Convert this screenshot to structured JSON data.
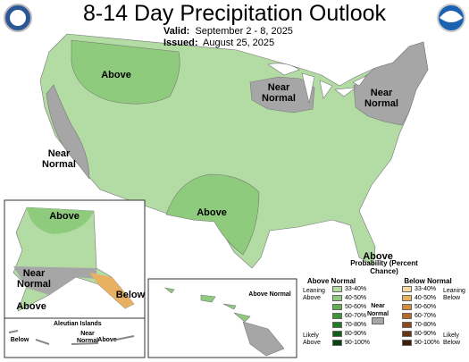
{
  "header": {
    "title": "8-14 Day Precipitation Outlook",
    "valid_label": "Valid:",
    "valid": "September 2 - 8, 2025",
    "issued_label": "Issued:",
    "issued": "August 25, 2025"
  },
  "map": {
    "labels": [
      "Above",
      "Near Normal",
      "Near Normal",
      "Near Normal",
      "Above",
      "Above",
      "Above",
      "Near Normal",
      "Above",
      "Below",
      "Above Normal",
      "Below",
      "Near Normal",
      "Above"
    ],
    "inset_title": "Aleutian Islands"
  },
  "legend": {
    "title": "Probability (Percent Chance)",
    "above": {
      "heading": "Above Normal",
      "leaning": "Leaning Above",
      "likely": "Likely Above",
      "items": [
        {
          "label": "33-40%",
          "color": "#b3dca5"
        },
        {
          "label": "40-50%",
          "color": "#8fcb7d"
        },
        {
          "label": "50-60%",
          "color": "#62b150"
        },
        {
          "label": "60-70%",
          "color": "#3d9535"
        },
        {
          "label": "70-80%",
          "color": "#227a23"
        },
        {
          "label": "80-90%",
          "color": "#0f5f16"
        },
        {
          "label": "90-100%",
          "color": "#074210"
        }
      ]
    },
    "near": {
      "heading": "Near Normal",
      "color": "#a6a6a6"
    },
    "below": {
      "heading": "Below Normal",
      "leaning": "Leaning Below",
      "likely": "Likely Below",
      "items": [
        {
          "label": "33-40%",
          "color": "#f6d9a1"
        },
        {
          "label": "40-50%",
          "color": "#e8b061"
        },
        {
          "label": "50-60%",
          "color": "#d48d3e"
        },
        {
          "label": "60-70%",
          "color": "#b56a2c"
        },
        {
          "label": "70-80%",
          "color": "#8c4a1e"
        },
        {
          "label": "80-90%",
          "color": "#663312"
        },
        {
          "label": "90-100%",
          "color": "#3d1d09"
        }
      ]
    }
  }
}
